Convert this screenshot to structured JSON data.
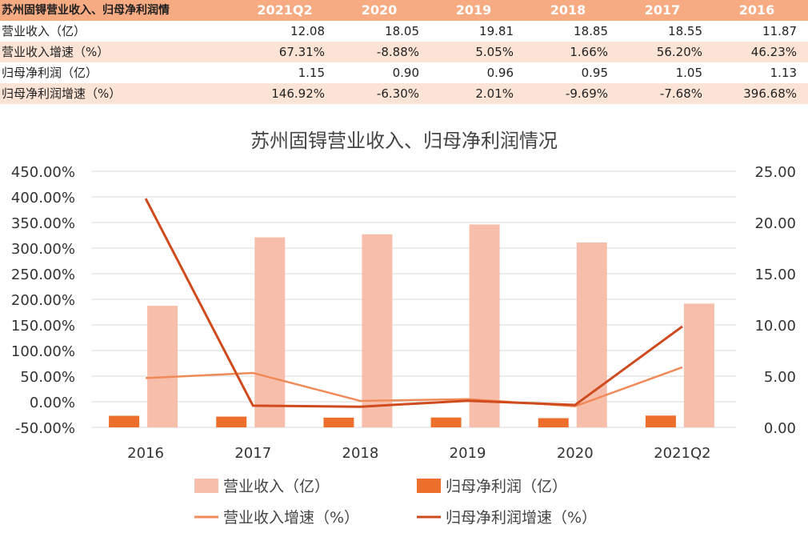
{
  "table": {
    "header": [
      "苏州固锝营业收入、归母净利润情",
      "2021Q2",
      "2020",
      "2019",
      "2018",
      "2017",
      "2016"
    ],
    "rows": [
      {
        "label": "营业收入（亿）",
        "values": [
          "12.08",
          "18.05",
          "19.81",
          "18.85",
          "18.55",
          "11.87"
        ]
      },
      {
        "label": "营业收入增速（%）",
        "values": [
          "67.31%",
          "-8.88%",
          "5.05%",
          "1.66%",
          "56.20%",
          "46.23%"
        ]
      },
      {
        "label": "归母净利润（亿）",
        "values": [
          "1.15",
          "0.90",
          "0.96",
          "0.95",
          "1.05",
          "1.13"
        ]
      },
      {
        "label": "归母净利润增速（%）",
        "values": [
          "146.92%",
          "-6.30%",
          "2.01%",
          "-9.69%",
          "-7.68%",
          "396.68%"
        ]
      }
    ]
  },
  "chart_data": {
    "type": "bar",
    "title": "苏州固锝营业收入、归母净利润情况",
    "categories": [
      "2016",
      "2017",
      "2018",
      "2019",
      "2020",
      "2021Q2"
    ],
    "y_left": {
      "ylim": [
        -50,
        450
      ],
      "ticks": [
        -50,
        0,
        50,
        100,
        150,
        200,
        250,
        300,
        350,
        400,
        450
      ],
      "tick_labels": [
        "-50.00%",
        "0.00%",
        "50.00%",
        "100.00%",
        "150.00%",
        "200.00%",
        "250.00%",
        "300.00%",
        "350.00%",
        "400.00%",
        "450.00%"
      ]
    },
    "y_right": {
      "ylim": [
        0,
        25
      ],
      "ticks": [
        0,
        5,
        10,
        15,
        20,
        25
      ],
      "tick_labels": [
        "0.00",
        "5.00",
        "10.00",
        "15.00",
        "20.00",
        "25.00"
      ]
    },
    "grid": true,
    "legend_position": "bottom",
    "series": [
      {
        "name": "营业收入（亿）",
        "type": "bar",
        "axis": "right",
        "color": "#f7bfab",
        "values": [
          11.87,
          18.55,
          18.85,
          19.81,
          18.05,
          12.08
        ]
      },
      {
        "name": "归母净利润（亿）",
        "type": "bar",
        "axis": "right",
        "color": "#ee6f2c",
        "values": [
          1.13,
          1.05,
          0.95,
          0.96,
          0.9,
          1.15
        ]
      },
      {
        "name": "营业收入增速（%）",
        "type": "line",
        "axis": "left",
        "color": "#f08a58",
        "values": [
          46.23,
          56.2,
          1.66,
          5.05,
          -8.88,
          67.31
        ]
      },
      {
        "name": "归母净利润增速（%）",
        "type": "line",
        "axis": "left",
        "color": "#cf4a1c",
        "values": [
          396.68,
          -7.68,
          -9.69,
          2.01,
          -6.3,
          146.92
        ]
      }
    ]
  }
}
